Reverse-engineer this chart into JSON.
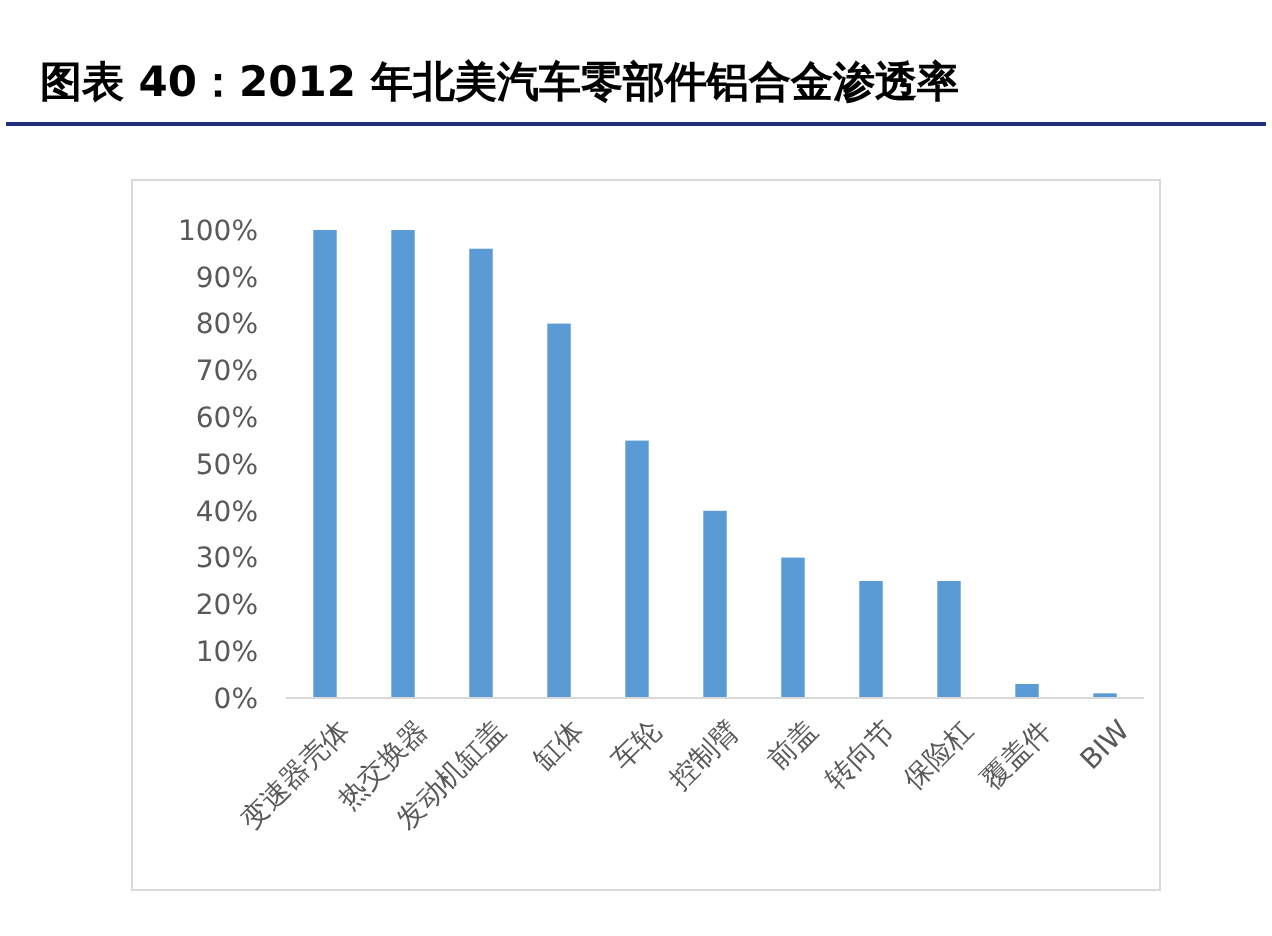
{
  "chart_data": {
    "type": "bar",
    "title": "图表 40：2012 年北美汽车零部件铝合金渗透率",
    "categories": [
      "变速器壳体",
      "热交换器",
      "发动机缸盖",
      "缸体",
      "车轮",
      "控制臂",
      "前盖",
      "转向节",
      "保险杠",
      "覆盖件",
      "BIW"
    ],
    "values": [
      100,
      100,
      96,
      80,
      55,
      40,
      30,
      25,
      25,
      3,
      1
    ],
    "color": "#5b9bd5",
    "ylim": [
      0,
      100
    ],
    "yticks": [
      {
        "value": 0,
        "label": "0%"
      },
      {
        "value": 10,
        "label": "10%"
      },
      {
        "value": 20,
        "label": "20%"
      },
      {
        "value": 30,
        "label": "30%"
      },
      {
        "value": 40,
        "label": "40%"
      },
      {
        "value": 50,
        "label": "50%"
      },
      {
        "value": 60,
        "label": "60%"
      },
      {
        "value": 70,
        "label": "70%"
      },
      {
        "value": 80,
        "label": "80%"
      },
      {
        "value": 90,
        "label": "90%"
      },
      {
        "value": 100,
        "label": "100%"
      }
    ],
    "grid": false
  }
}
